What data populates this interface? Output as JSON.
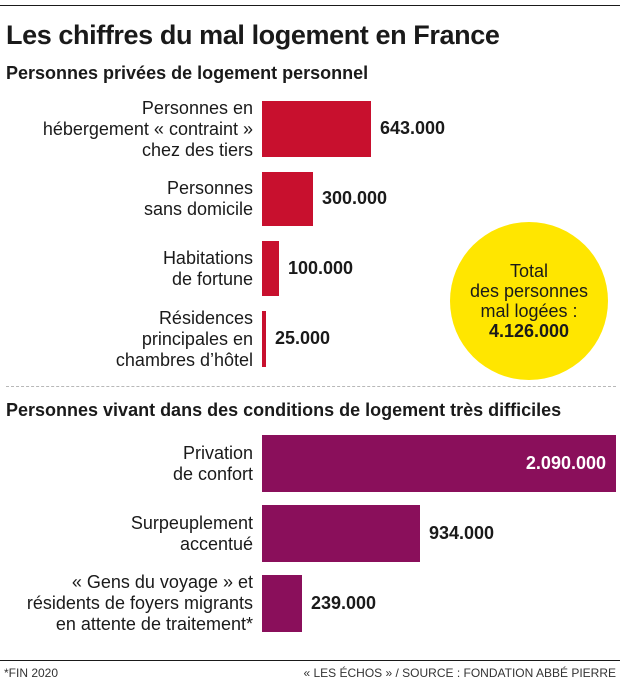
{
  "title": "Les chiffres du mal logement en France",
  "colors": {
    "section1_bar": "#c8102e",
    "section2_bar": "#8a0f5b",
    "highlight": "#ffe600"
  },
  "total": {
    "label": "Total\ndes personnes\nmal logées :",
    "value": "4.126.000"
  },
  "chart_data": [
    {
      "type": "bar",
      "orientation": "horizontal",
      "title": "Personnes privées de logement personnel",
      "categories": [
        "Personnes en\nhébergement « contraint »\nchez des tiers",
        "Personnes\nsans domicile",
        "Habitations\nde fortune",
        "Résidences\nprincipales en\nchambres d’hôtel"
      ],
      "values": [
        643000,
        300000,
        100000,
        25000
      ],
      "value_labels": [
        "643.000",
        "300.000",
        "100.000",
        "25.000"
      ],
      "xlim": [
        0,
        2090000
      ],
      "grid": false
    },
    {
      "type": "bar",
      "orientation": "horizontal",
      "title": "Personnes vivant dans des conditions de logement très difficiles",
      "categories": [
        "Privation\nde confort",
        "Surpeuplement\naccentué",
        "« Gens du voyage » et\nrésidents de foyers migrants\nen attente de traitement*"
      ],
      "values": [
        2090000,
        934000,
        239000
      ],
      "value_labels": [
        "2.090.000",
        "934.000",
        "239.000"
      ],
      "xlim": [
        0,
        2090000
      ],
      "grid": false
    }
  ],
  "footer": {
    "note": "*FIN 2020",
    "source": "« LES ÉCHOS » / SOURCE : FONDATION ABBÉ PIERRE"
  }
}
